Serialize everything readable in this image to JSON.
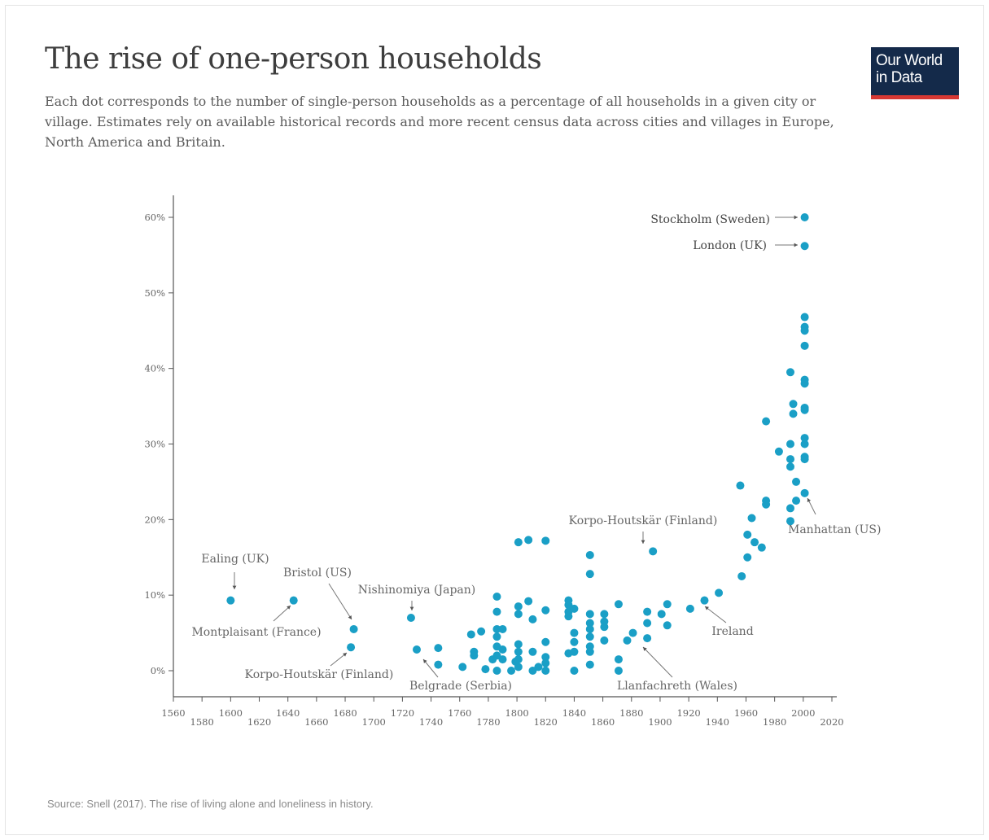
{
  "header": {
    "title": "The rise of one-person households",
    "subtitle": "Each dot corresponds to the number of single-person households as a percentage of all households in a given city or village. Estimates rely on available historical records and more recent census data across cities and villages in Europe, North America and Britain.",
    "logo_line1": "Our World",
    "logo_line2": "in Data"
  },
  "footer": {
    "source": "Source: Snell (2017). The rise of living alone and loneliness in history."
  },
  "colors": {
    "dot": "#1a9fc6",
    "axis": "#555555",
    "logo_bg": "#142a4a",
    "logo_accent": "#d73833"
  },
  "chart_data": {
    "type": "scatter",
    "title": "The rise of one-person households",
    "xlabel": "",
    "ylabel": "",
    "xlim": [
      1560,
      2020
    ],
    "ylim": [
      0,
      60
    ],
    "x_ticks": [
      1560,
      1580,
      1600,
      1620,
      1640,
      1660,
      1680,
      1700,
      1720,
      1740,
      1760,
      1780,
      1800,
      1820,
      1840,
      1860,
      1880,
      1900,
      1920,
      1940,
      1960,
      1980,
      2000,
      2020
    ],
    "y_ticks": [
      0,
      10,
      20,
      30,
      40,
      50,
      60
    ],
    "y_tick_labels": [
      "0%",
      "10%",
      "20%",
      "30%",
      "40%",
      "50%",
      "60%"
    ],
    "grid": false,
    "legend": "none",
    "points": [
      [
        1600,
        9.3
      ],
      [
        1644,
        9.3
      ],
      [
        1686,
        5.5
      ],
      [
        1684,
        3.1
      ],
      [
        1726,
        7.0
      ],
      [
        1730,
        2.8
      ],
      [
        1745,
        3.0
      ],
      [
        1745,
        0.8
      ],
      [
        1762,
        0.5
      ],
      [
        1768,
        4.8
      ],
      [
        1770,
        2.5
      ],
      [
        1770,
        2.0
      ],
      [
        1775,
        5.2
      ],
      [
        1778,
        0.2
      ],
      [
        1783,
        1.5
      ],
      [
        1786,
        9.8
      ],
      [
        1786,
        7.8
      ],
      [
        1786,
        5.5
      ],
      [
        1786,
        4.5
      ],
      [
        1786,
        3.2
      ],
      [
        1786,
        2.0
      ],
      [
        1786,
        0.0
      ],
      [
        1790,
        5.5
      ],
      [
        1790,
        2.8
      ],
      [
        1790,
        1.5
      ],
      [
        1796,
        0.0
      ],
      [
        1799,
        1.2
      ],
      [
        1801,
        17.0
      ],
      [
        1801,
        8.5
      ],
      [
        1801,
        7.5
      ],
      [
        1801,
        3.5
      ],
      [
        1801,
        2.5
      ],
      [
        1801,
        1.5
      ],
      [
        1801,
        0.5
      ],
      [
        1808,
        17.3
      ],
      [
        1808,
        9.2
      ],
      [
        1811,
        6.8
      ],
      [
        1811,
        2.5
      ],
      [
        1811,
        0.0
      ],
      [
        1815,
        0.5
      ],
      [
        1820,
        17.2
      ],
      [
        1820,
        8.0
      ],
      [
        1820,
        3.8
      ],
      [
        1820,
        1.8
      ],
      [
        1820,
        1.0
      ],
      [
        1820,
        0.0
      ],
      [
        1836,
        9.3
      ],
      [
        1836,
        8.7
      ],
      [
        1836,
        7.8
      ],
      [
        1836,
        7.2
      ],
      [
        1836,
        2.3
      ],
      [
        1840,
        8.2
      ],
      [
        1840,
        5.0
      ],
      [
        1840,
        3.8
      ],
      [
        1840,
        2.5
      ],
      [
        1840,
        0.0
      ],
      [
        1851,
        15.3
      ],
      [
        1851,
        12.8
      ],
      [
        1851,
        7.5
      ],
      [
        1851,
        6.3
      ],
      [
        1851,
        5.5
      ],
      [
        1851,
        4.5
      ],
      [
        1851,
        3.2
      ],
      [
        1851,
        2.5
      ],
      [
        1851,
        0.8
      ],
      [
        1861,
        7.5
      ],
      [
        1861,
        6.5
      ],
      [
        1861,
        5.8
      ],
      [
        1861,
        4.0
      ],
      [
        1871,
        8.8
      ],
      [
        1871,
        1.5
      ],
      [
        1871,
        0.0
      ],
      [
        1877,
        4.0
      ],
      [
        1881,
        5.0
      ],
      [
        1891,
        7.8
      ],
      [
        1891,
        6.3
      ],
      [
        1891,
        4.3
      ],
      [
        1895,
        15.8
      ],
      [
        1901,
        7.5
      ],
      [
        1905,
        8.8
      ],
      [
        1905,
        6.0
      ],
      [
        1921,
        8.2
      ],
      [
        1931,
        9.3
      ],
      [
        1941,
        10.3
      ],
      [
        1956,
        24.5
      ],
      [
        1957,
        12.5
      ],
      [
        1961,
        15.0
      ],
      [
        1961,
        18.0
      ],
      [
        1964,
        20.2
      ],
      [
        1966,
        17.0
      ],
      [
        1971,
        16.3
      ],
      [
        1974,
        22.5
      ],
      [
        1974,
        22.0
      ],
      [
        1974,
        33.0
      ],
      [
        1983,
        29.0
      ],
      [
        1991,
        39.5
      ],
      [
        1991,
        30.0
      ],
      [
        1991,
        28.0
      ],
      [
        1991,
        27.0
      ],
      [
        1991,
        21.5
      ],
      [
        1991,
        19.8
      ],
      [
        1993,
        35.3
      ],
      [
        1993,
        34.0
      ],
      [
        1995,
        22.5
      ],
      [
        1995,
        25.0
      ],
      [
        2001,
        46.8
      ],
      [
        2001,
        45.5
      ],
      [
        2001,
        45.0
      ],
      [
        2001,
        43.0
      ],
      [
        2001,
        38.5
      ],
      [
        2001,
        38.0
      ],
      [
        2001,
        34.8
      ],
      [
        2001,
        34.5
      ],
      [
        2001,
        30.8
      ],
      [
        2001,
        30.0
      ],
      [
        2001,
        28.3
      ],
      [
        2001,
        28.0
      ],
      [
        2001,
        23.5
      ],
      [
        2001,
        56.2
      ],
      [
        2001,
        60.0
      ]
    ],
    "annotations": [
      {
        "label": "Stockholm (Sweden)",
        "x": 2001,
        "y": 60.0,
        "style": "dark"
      },
      {
        "label": "London (UK)",
        "x": 2001,
        "y": 56.2,
        "style": "dark"
      },
      {
        "label": "Manhattan (US)",
        "x": 2001,
        "y": 23.5
      },
      {
        "label": "Korpo-Houtskär (Finland)",
        "x": 1895,
        "y": 15.8
      },
      {
        "label": "Ireland",
        "x": 1931,
        "y": 9.3
      },
      {
        "label": "Llanfachreth (Wales)",
        "x": 1891,
        "y": 4.3
      },
      {
        "label": "Ealing (UK)",
        "x": 1600,
        "y": 9.3
      },
      {
        "label": "Bristol (US)",
        "x": 1686,
        "y": 5.5
      },
      {
        "label": "Montplaisant (France)",
        "x": 1644,
        "y": 9.3
      },
      {
        "label": "Nishinomiya (Japan)",
        "x": 1726,
        "y": 7.0
      },
      {
        "label": "Korpo-Houtskär (Finland)",
        "x": 1684,
        "y": 3.1
      },
      {
        "label": "Belgrade (Serbia)",
        "x": 1730,
        "y": 2.8
      }
    ]
  }
}
